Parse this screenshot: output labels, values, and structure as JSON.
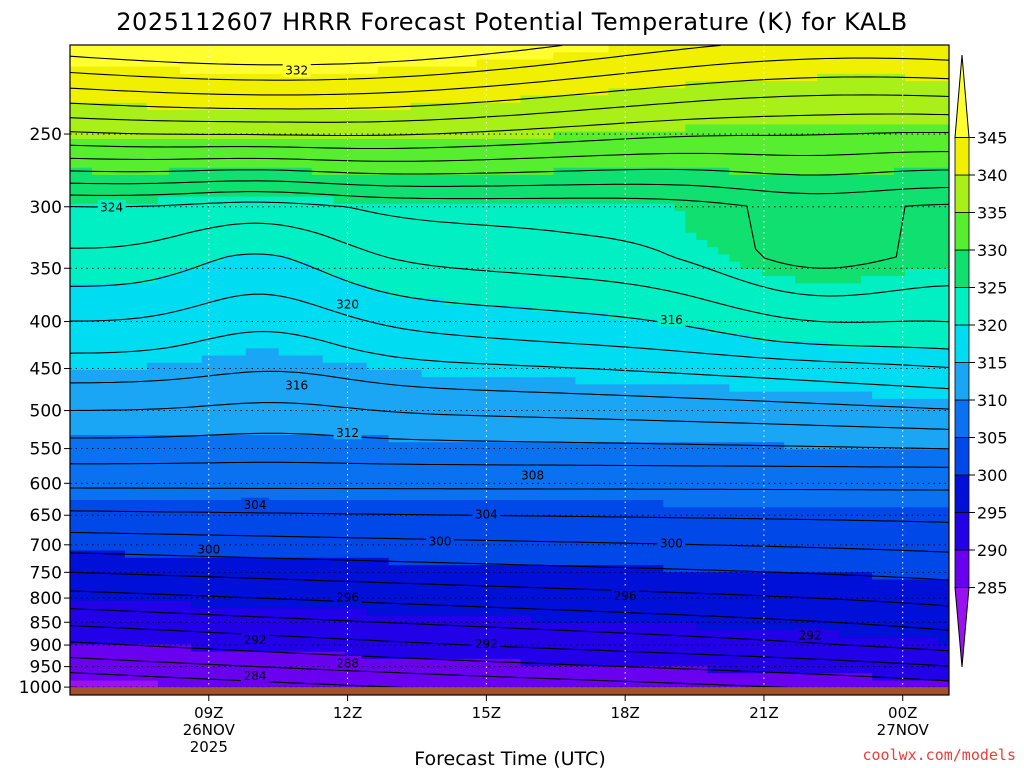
{
  "chart_data": {
    "type": "heatmap",
    "title": "2025112607 HRRR Forecast Potential Temperature (K) for KALB",
    "xlabel": "Forecast Time (UTC)",
    "y_ticks": [
      250,
      300,
      350,
      400,
      450,
      500,
      550,
      600,
      650,
      700,
      750,
      800,
      850,
      900,
      950,
      1000
    ],
    "y_scale": "log",
    "y_range": [
      200,
      1020
    ],
    "x_range": [
      6,
      25
    ],
    "x_ticks": [
      {
        "hour": 9,
        "labels": [
          "09Z",
          "26NOV",
          "2025"
        ]
      },
      {
        "hour": 12,
        "labels": [
          "12Z"
        ]
      },
      {
        "hour": 15,
        "labels": [
          "15Z"
        ]
      },
      {
        "hour": 18,
        "labels": [
          "18Z"
        ]
      },
      {
        "hour": 21,
        "labels": [
          "21Z"
        ]
      },
      {
        "hour": 24,
        "labels": [
          "00Z",
          "27NOV"
        ]
      }
    ],
    "colorbar": {
      "levels": [
        285,
        290,
        295,
        300,
        305,
        310,
        315,
        320,
        325,
        330,
        335,
        340,
        345
      ],
      "min": 280,
      "max": 350,
      "colors": [
        "#9a12f0",
        "#6a00f0",
        "#2200e8",
        "#0010d8",
        "#0048e8",
        "#0a72f0",
        "#1aa6f4",
        "#00dcf2",
        "#00f0c4",
        "#10e070",
        "#58ee30",
        "#a8f018",
        "#f0f000",
        "#ffff30"
      ]
    },
    "contour_labels": [
      {
        "value": "332",
        "hour": 10.9,
        "p": 213
      },
      {
        "value": "324",
        "hour": 6.9,
        "p": 300
      },
      {
        "value": "320",
        "hour": 12,
        "p": 383
      },
      {
        "value": "316",
        "hour": 19,
        "p": 398
      },
      {
        "value": "316",
        "hour": 10.9,
        "p": 469
      },
      {
        "value": "312",
        "hour": 12,
        "p": 528
      },
      {
        "value": "308",
        "hour": 16,
        "p": 588
      },
      {
        "value": "304",
        "hour": 10,
        "p": 633
      },
      {
        "value": "304",
        "hour": 15,
        "p": 648
      },
      {
        "value": "300",
        "hour": 14,
        "p": 693
      },
      {
        "value": "300",
        "hour": 19,
        "p": 697
      },
      {
        "value": "300",
        "hour": 9,
        "p": 707
      },
      {
        "value": "296",
        "hour": 12,
        "p": 798
      },
      {
        "value": "296",
        "hour": 18,
        "p": 795
      },
      {
        "value": "292",
        "hour": 22,
        "p": 878
      },
      {
        "value": "292",
        "hour": 10,
        "p": 888
      },
      {
        "value": "292",
        "hour": 15,
        "p": 896
      },
      {
        "value": "288",
        "hour": 12,
        "p": 941
      },
      {
        "value": "284",
        "hour": 10,
        "p": 971
      }
    ],
    "surface_pressure": 1000
  },
  "credit": "coolwx.com/models"
}
